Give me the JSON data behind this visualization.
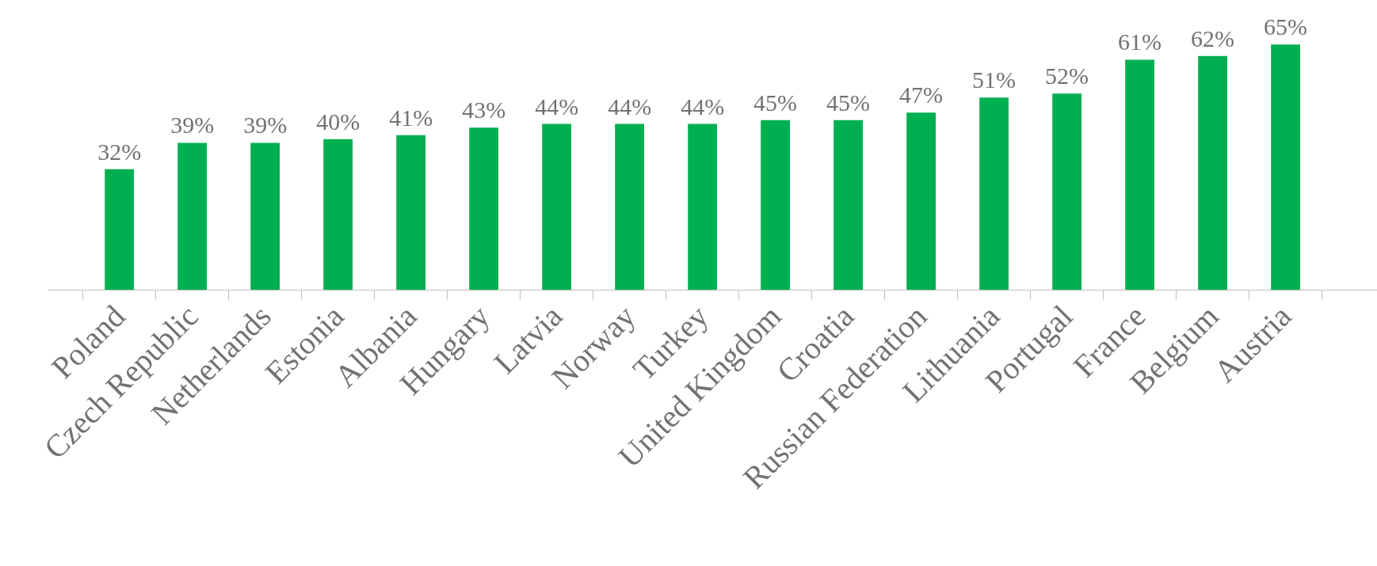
{
  "chart_data": {
    "type": "bar",
    "categories": [
      "Poland",
      "Czech Republic",
      "Netherlands",
      "Estonia",
      "Albania",
      "Hungary",
      "Latvia",
      "Norway",
      "Turkey",
      "United Kingdom",
      "Croatia",
      "Russian Federation",
      "Lithuania",
      "Portugal",
      "France",
      "Belgium",
      "Austria"
    ],
    "values": [
      32,
      39,
      39,
      40,
      41,
      43,
      44,
      44,
      44,
      45,
      45,
      47,
      51,
      52,
      61,
      62,
      65
    ],
    "color": "#00b050",
    "value_labels": [
      "32%",
      "39%",
      "39%",
      "40%",
      "41%",
      "43%",
      "44%",
      "44%",
      "44%",
      "45%",
      "45%",
      "47%",
      "51%",
      "52%",
      "61%",
      "62%",
      "65%"
    ],
    "grid": false
  }
}
